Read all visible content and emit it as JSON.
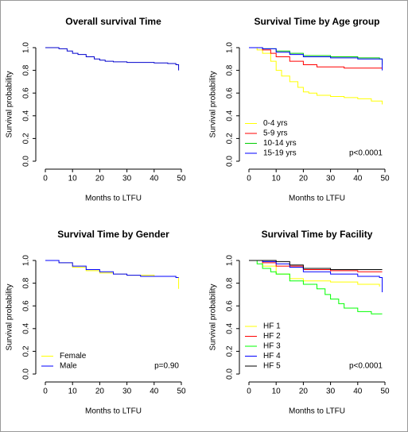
{
  "chart_data": [
    {
      "type": "line",
      "step": true,
      "title": "Overall survival Time",
      "x_label": "Months to LTFU",
      "y_label": "Survival probability",
      "xlim": [
        0,
        50
      ],
      "ylim": [
        0,
        1
      ],
      "xticks": [
        0,
        10,
        20,
        30,
        40,
        50
      ],
      "yticks": [
        {
          "value": 0,
          "label": "0.0"
        },
        0.2,
        0.4,
        0.6,
        0.8,
        {
          "value": 1,
          "label": "1.0"
        }
      ],
      "series": [
        {
          "color": "#0000cd",
          "x": [
            0,
            3,
            5,
            8,
            10,
            12,
            15,
            18,
            20,
            22,
            25,
            30,
            35,
            40,
            45,
            48,
            49
          ],
          "values": [
            1,
            1,
            0.99,
            0.97,
            0.95,
            0.94,
            0.92,
            0.9,
            0.89,
            0.88,
            0.875,
            0.87,
            0.87,
            0.865,
            0.86,
            0.85,
            0.8
          ]
        }
      ]
    },
    {
      "type": "line",
      "step": true,
      "title": "Survival Time by Age group",
      "x_label": "Months to LTFU",
      "y_label": "Survival probability",
      "xlim": [
        0,
        50
      ],
      "ylim": [
        0,
        1
      ],
      "xticks": [
        0,
        10,
        20,
        30,
        40,
        50
      ],
      "yticks": [
        {
          "value": 0,
          "label": "0.0"
        },
        0.2,
        0.4,
        0.6,
        0.8,
        {
          "value": 1,
          "label": "1.0"
        }
      ],
      "legend": "bottomleft",
      "annotation": "p<0.0001",
      "series": [
        {
          "name": "0-4 yrs",
          "color": "#ffff00",
          "x": [
            0,
            3,
            5,
            8,
            10,
            12,
            15,
            18,
            20,
            22,
            25,
            30,
            35,
            40,
            45,
            49
          ],
          "values": [
            1,
            0.98,
            0.95,
            0.88,
            0.8,
            0.75,
            0.7,
            0.65,
            0.61,
            0.6,
            0.58,
            0.57,
            0.56,
            0.55,
            0.53,
            0.5
          ]
        },
        {
          "name": "5-9 yrs",
          "color": "#ff0000",
          "x": [
            0,
            3,
            5,
            8,
            10,
            15,
            20,
            25,
            30,
            35,
            40,
            49
          ],
          "values": [
            1,
            1,
            0.98,
            0.95,
            0.92,
            0.88,
            0.85,
            0.83,
            0.83,
            0.82,
            0.82,
            0.82
          ]
        },
        {
          "name": "10-14 yrs",
          "color": "#00cc00",
          "x": [
            0,
            5,
            10,
            15,
            20,
            30,
            40,
            48,
            49
          ],
          "values": [
            1,
            0.99,
            0.97,
            0.95,
            0.93,
            0.92,
            0.91,
            0.9,
            0.85
          ]
        },
        {
          "name": "15-19 yrs",
          "color": "#0000ff",
          "x": [
            0,
            3,
            5,
            10,
            15,
            20,
            30,
            40,
            48,
            49
          ],
          "values": [
            1,
            1,
            0.99,
            0.96,
            0.94,
            0.92,
            0.91,
            0.9,
            0.9,
            0.8
          ]
        }
      ]
    },
    {
      "type": "line",
      "step": true,
      "title": "Survival Time by Gender",
      "x_label": "Months to LTFU",
      "y_label": "Survival probability",
      "xlim": [
        0,
        50
      ],
      "ylim": [
        0,
        1
      ],
      "xticks": [
        0,
        10,
        20,
        30,
        40,
        50
      ],
      "yticks": [
        {
          "value": 0,
          "label": "0.0"
        },
        0.2,
        0.4,
        0.6,
        0.8,
        {
          "value": 1,
          "label": "1.0"
        }
      ],
      "legend": "bottomleft",
      "annotation": "p=0.90",
      "series": [
        {
          "name": "Female",
          "color": "#ffff00",
          "x": [
            0,
            5,
            10,
            15,
            20,
            25,
            30,
            40,
            48,
            49
          ],
          "values": [
            1,
            0.98,
            0.94,
            0.91,
            0.89,
            0.88,
            0.87,
            0.86,
            0.85,
            0.75
          ]
        },
        {
          "name": "Male",
          "color": "#0000ff",
          "x": [
            0,
            5,
            10,
            15,
            20,
            25,
            30,
            35,
            40,
            48,
            49
          ],
          "values": [
            1,
            0.98,
            0.95,
            0.92,
            0.9,
            0.88,
            0.87,
            0.86,
            0.86,
            0.85,
            0.85
          ]
        }
      ]
    },
    {
      "type": "line",
      "step": true,
      "title": "Survival Time by Facility",
      "x_label": "Months to LTFU",
      "y_label": "Survival probability",
      "xlim": [
        0,
        50
      ],
      "ylim": [
        0,
        1
      ],
      "xticks": [
        0,
        10,
        20,
        30,
        40,
        50
      ],
      "yticks": [
        {
          "value": 0,
          "label": "0.0"
        },
        0.2,
        0.4,
        0.6,
        0.8,
        {
          "value": 1,
          "label": "1.0"
        }
      ],
      "legend": "bottomleft",
      "annotation": "p<0.0001",
      "series": [
        {
          "name": "HF 1",
          "color": "#ffff00",
          "x": [
            0,
            5,
            10,
            15,
            20,
            30,
            40,
            48
          ],
          "values": [
            1,
            0.95,
            0.88,
            0.84,
            0.82,
            0.81,
            0.79,
            0.77
          ]
        },
        {
          "name": "HF 2",
          "color": "#ff0000",
          "x": [
            0,
            5,
            10,
            20,
            30,
            40,
            49
          ],
          "values": [
            1,
            0.98,
            0.95,
            0.92,
            0.91,
            0.9,
            0.9
          ]
        },
        {
          "name": "HF 3",
          "color": "#00ff00",
          "x": [
            0,
            3,
            5,
            8,
            10,
            15,
            20,
            25,
            28,
            30,
            33,
            35,
            40,
            45,
            49
          ],
          "values": [
            1,
            0.97,
            0.93,
            0.9,
            0.88,
            0.82,
            0.79,
            0.75,
            0.7,
            0.66,
            0.62,
            0.58,
            0.55,
            0.53,
            0.53
          ]
        },
        {
          "name": "HF 4",
          "color": "#0000ff",
          "x": [
            0,
            5,
            10,
            15,
            20,
            30,
            40,
            48,
            49
          ],
          "values": [
            1,
            0.99,
            0.97,
            0.94,
            0.9,
            0.88,
            0.86,
            0.85,
            0.72
          ]
        },
        {
          "name": "HF 5",
          "color": "#000000",
          "x": [
            0,
            10,
            15,
            20,
            30,
            40,
            49
          ],
          "values": [
            1,
            0.99,
            0.96,
            0.93,
            0.92,
            0.92,
            0.92
          ]
        }
      ]
    }
  ]
}
